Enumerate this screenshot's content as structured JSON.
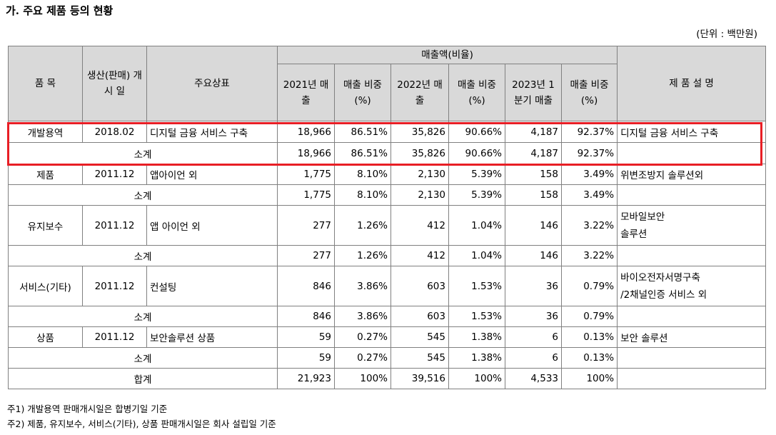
{
  "title": "가. 주요 제품 등의 현황",
  "unit": "(단위 : 백만원)",
  "headers": {
    "item": "품 목",
    "start_date": "생산(판매) 개 시 일",
    "brand": "주요상표",
    "sales_group": "매출액(비율)",
    "y2021": "2021년 매출",
    "ratio1": "매출 비중 (%)",
    "y2022": "2022년 매출",
    "ratio2": "매출 비중 (%)",
    "q1_2023": "2023년 1분기 매출",
    "ratio3": "매출 비중 (%)",
    "description": "제 품 설 명"
  },
  "rows": [
    {
      "item": "개발용역",
      "date": "2018.02",
      "brand": "디지털 금융 서비스 구축",
      "s2021": "18,966",
      "p2021": "86.51%",
      "s2022": "35,826",
      "p2022": "90.66%",
      "s2023": "4,187",
      "p2023": "92.37%",
      "desc1": "디지털 금융 서비스 구축",
      "desc2": ""
    },
    {
      "label": "소계",
      "s2021": "18,966",
      "p2021": "86.51%",
      "s2022": "35,826",
      "p2022": "90.66%",
      "s2023": "4,187",
      "p2023": "92.37%",
      "desc1": ""
    },
    {
      "item": "제품",
      "date": "2011.12",
      "brand": "앱아이언 외",
      "s2021": "1,775",
      "p2021": "8.10%",
      "s2022": "2,130",
      "p2022": "5.39%",
      "s2023": "158",
      "p2023": "3.49%",
      "desc1": "위변조방지 솔루션외",
      "desc2": ""
    },
    {
      "label": "소계",
      "s2021": "1,775",
      "p2021": "8.10%",
      "s2022": "2,130",
      "p2022": "5.39%",
      "s2023": "158",
      "p2023": "3.49%",
      "desc1": ""
    },
    {
      "item": "유지보수",
      "date": "2011.12",
      "brand": "앱 아이언 외",
      "s2021": "277",
      "p2021": "1.26%",
      "s2022": "412",
      "p2022": "1.04%",
      "s2023": "146",
      "p2023": "3.22%",
      "desc1": "모바일보안",
      "desc2": "솔루션"
    },
    {
      "label": "소계",
      "s2021": "277",
      "p2021": "1.26%",
      "s2022": "412",
      "p2022": "1.04%",
      "s2023": "146",
      "p2023": "3.22%",
      "desc1": ""
    },
    {
      "item": "서비스(기타)",
      "date": "2011.12",
      "brand": "컨설팅",
      "s2021": "846",
      "p2021": "3.86%",
      "s2022": "603",
      "p2022": "1.53%",
      "s2023": "36",
      "p2023": "0.79%",
      "desc1": "바이오전자서명구축",
      "desc2": "/2채널인증 서비스 외"
    },
    {
      "label": "소계",
      "s2021": "846",
      "p2021": "3.86%",
      "s2022": "603",
      "p2022": "1.53%",
      "s2023": "36",
      "p2023": "0.79%",
      "desc1": ""
    },
    {
      "item": "상품",
      "date": "2011.12",
      "brand": "보안솔루션 상품",
      "s2021": "59",
      "p2021": "0.27%",
      "s2022": "545",
      "p2022": "1.38%",
      "s2023": "6",
      "p2023": "0.13%",
      "desc1": "보안 솔루션",
      "desc2": ""
    },
    {
      "label": "소계",
      "s2021": "59",
      "p2021": "0.27%",
      "s2022": "545",
      "p2022": "1.38%",
      "s2023": "6",
      "p2023": "0.13%",
      "desc1": ""
    },
    {
      "label": "합계",
      "s2021": "21,923",
      "p2021": "100%",
      "s2022": "39,516",
      "p2022": "100%",
      "s2023": "4,533",
      "p2023": "100%",
      "desc1": ""
    }
  ],
  "notes": [
    "주1) 개발용역 판매개시일은 합병기일 기준",
    "주2) 제품, 유지보수, 서비스(기타), 상품 판매개시일은 회사 설립일 기준"
  ],
  "highlight_color": "#e81e25"
}
